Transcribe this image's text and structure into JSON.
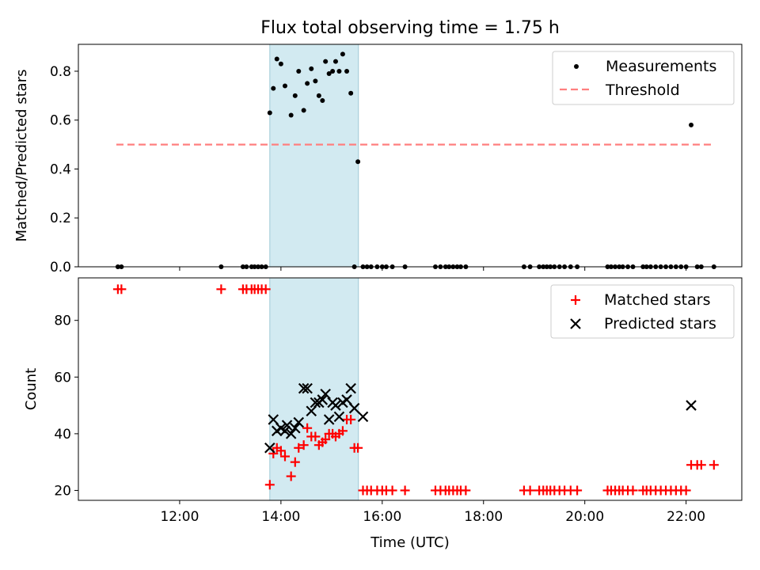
{
  "chart_data": [
    {
      "type": "scatter",
      "title": "Flux total observing time = 1.75 h",
      "ylabel": "Matched/Predicted stars",
      "xlabel": "",
      "xlim": [
        10.0,
        23.1
      ],
      "ylim": [
        0.0,
        0.91
      ],
      "yticks": [
        0.0,
        0.2,
        0.4,
        0.6,
        0.8
      ],
      "ytick_labels": [
        "0.0",
        "0.2",
        "0.4",
        "0.6",
        "0.8"
      ],
      "xticks": [
        12,
        14,
        16,
        18,
        20,
        22
      ],
      "xtick_labels": [
        "12:00",
        "14:00",
        "16:00",
        "18:00",
        "20:00",
        "22:00"
      ],
      "legend": {
        "placement": "top-right",
        "entries": [
          "Measurements",
          "Threshold"
        ]
      },
      "highlight_span": {
        "x0": 13.78,
        "x1": 15.53,
        "color": "#add8e6"
      },
      "threshold": {
        "name": "Threshold",
        "value": 0.5,
        "x0": 10.75,
        "x1": 22.5,
        "color": "#ff7f7f"
      },
      "series": [
        {
          "name": "Measurements",
          "color": "#000000",
          "x": [
            10.78,
            10.85,
            12.82,
            13.25,
            13.32,
            13.42,
            13.48,
            13.55,
            13.62,
            13.7,
            13.78,
            13.85,
            13.92,
            14.0,
            14.08,
            14.2,
            14.28,
            14.35,
            14.45,
            14.52,
            14.6,
            14.68,
            14.75,
            14.82,
            14.88,
            14.95,
            15.02,
            15.08,
            15.15,
            15.22,
            15.3,
            15.38,
            15.45,
            15.52,
            15.62,
            15.7,
            15.78,
            15.9,
            16.0,
            16.08,
            16.2,
            16.45,
            17.05,
            17.15,
            17.25,
            17.32,
            17.4,
            17.48,
            17.55,
            17.65,
            18.8,
            18.92,
            19.1,
            19.18,
            19.25,
            19.32,
            19.4,
            19.5,
            19.6,
            19.72,
            19.85,
            20.45,
            20.52,
            20.6,
            20.68,
            20.75,
            20.85,
            20.95,
            21.15,
            21.22,
            21.3,
            21.4,
            21.5,
            21.6,
            21.7,
            21.8,
            21.9,
            22.0,
            22.1,
            22.22,
            22.3,
            22.55
          ],
          "y": [
            0.0,
            0.0,
            0.0,
            0.0,
            0.0,
            0.0,
            0.0,
            0.0,
            0.0,
            0.0,
            0.63,
            0.73,
            0.85,
            0.83,
            0.74,
            0.62,
            0.7,
            0.8,
            0.64,
            0.75,
            0.81,
            0.76,
            0.7,
            0.68,
            0.84,
            0.79,
            0.8,
            0.84,
            0.8,
            0.87,
            0.8,
            0.71,
            0.0,
            0.43,
            0.0,
            0.0,
            0.0,
            0.0,
            0.0,
            0.0,
            0.0,
            0.0,
            0.0,
            0.0,
            0.0,
            0.0,
            0.0,
            0.0,
            0.0,
            0.0,
            0.0,
            0.0,
            0.0,
            0.0,
            0.0,
            0.0,
            0.0,
            0.0,
            0.0,
            0.0,
            0.0,
            0.0,
            0.0,
            0.0,
            0.0,
            0.0,
            0.0,
            0.0,
            0.0,
            0.0,
            0.0,
            0.0,
            0.0,
            0.0,
            0.0,
            0.0,
            0.0,
            0.0,
            0.58,
            0.0,
            0.0,
            0.0
          ]
        }
      ]
    },
    {
      "type": "scatter",
      "title": "",
      "ylabel": "Count",
      "xlabel": "Time (UTC)",
      "xlim": [
        10.0,
        23.1
      ],
      "ylim": [
        16.5,
        95
      ],
      "yticks": [
        20,
        40,
        60,
        80
      ],
      "ytick_labels": [
        "20",
        "40",
        "60",
        "80"
      ],
      "xticks": [
        12,
        14,
        16,
        18,
        20,
        22
      ],
      "xtick_labels": [
        "12:00",
        "14:00",
        "16:00",
        "18:00",
        "20:00",
        "22:00"
      ],
      "legend": {
        "placement": "top-right",
        "entries": [
          "Matched stars",
          "Predicted stars"
        ]
      },
      "highlight_span": {
        "x0": 13.78,
        "x1": 15.53,
        "color": "#add8e6"
      },
      "series": [
        {
          "name": "Matched stars",
          "color": "#ff0000",
          "marker": "plus",
          "x": [
            10.78,
            10.85,
            12.82,
            13.25,
            13.32,
            13.42,
            13.48,
            13.55,
            13.62,
            13.7,
            13.78,
            13.85,
            13.92,
            14.0,
            14.08,
            14.2,
            14.28,
            14.35,
            14.45,
            14.52,
            14.6,
            14.68,
            14.75,
            14.82,
            14.88,
            14.95,
            15.02,
            15.08,
            15.15,
            15.22,
            15.3,
            15.38,
            15.45,
            15.52,
            15.62,
            15.7,
            15.78,
            15.9,
            16.0,
            16.08,
            16.2,
            16.45,
            17.05,
            17.15,
            17.25,
            17.32,
            17.4,
            17.48,
            17.55,
            17.65,
            18.8,
            18.92,
            19.1,
            19.18,
            19.25,
            19.32,
            19.4,
            19.5,
            19.6,
            19.72,
            19.85,
            20.45,
            20.52,
            20.6,
            20.68,
            20.75,
            20.85,
            20.95,
            21.15,
            21.22,
            21.3,
            21.4,
            21.5,
            21.6,
            21.7,
            21.8,
            21.9,
            22.0,
            22.1,
            22.22,
            22.3,
            22.55
          ],
          "y": [
            91,
            91,
            91,
            91,
            91,
            91,
            91,
            91,
            91,
            91,
            22,
            33,
            35,
            34,
            32,
            25,
            30,
            35,
            36,
            42,
            39,
            39,
            36,
            37,
            38,
            40,
            40,
            39,
            40,
            41,
            45,
            45,
            35,
            35,
            20,
            20,
            20,
            20,
            20,
            20,
            20,
            20,
            20,
            20,
            20,
            20,
            20,
            20,
            20,
            20,
            20,
            20,
            20,
            20,
            20,
            20,
            20,
            20,
            20,
            20,
            20,
            20,
            20,
            20,
            20,
            20,
            20,
            20,
            20,
            20,
            20,
            20,
            20,
            20,
            20,
            20,
            20,
            20,
            29,
            29,
            29,
            29
          ]
        },
        {
          "name": "Predicted stars",
          "color": "#000000",
          "marker": "x",
          "x": [
            13.78,
            13.85,
            13.92,
            14.0,
            14.08,
            14.12,
            14.2,
            14.28,
            14.35,
            14.45,
            14.52,
            14.6,
            14.68,
            14.75,
            14.82,
            14.88,
            14.95,
            15.02,
            15.08,
            15.15,
            15.22,
            15.3,
            15.38,
            15.45,
            15.62,
            22.1
          ],
          "y": [
            35,
            45,
            41,
            42,
            41,
            43,
            40,
            42,
            44,
            56,
            56,
            48,
            51,
            51,
            52,
            54,
            45,
            51,
            50,
            46,
            51,
            52,
            56,
            49,
            46,
            50
          ]
        }
      ]
    }
  ]
}
